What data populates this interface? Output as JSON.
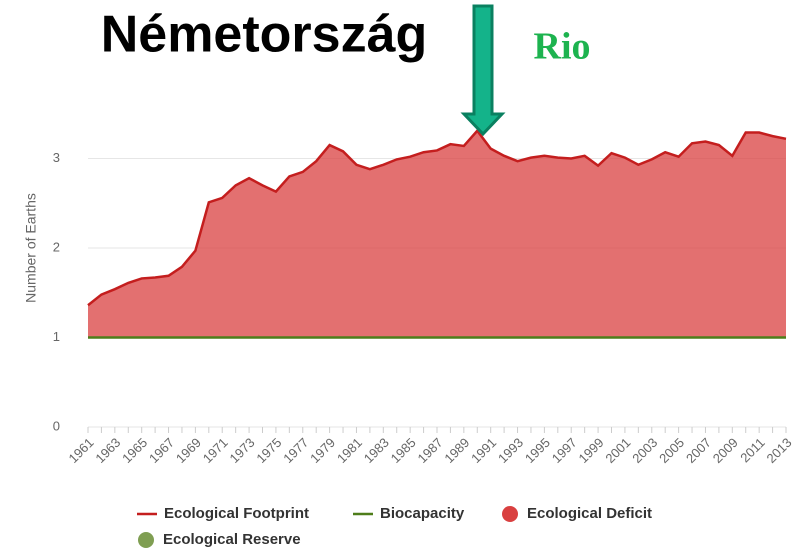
{
  "chart_data": {
    "type": "area",
    "title": "Németország",
    "annotation": "Rio",
    "y_label": "Number of Earths",
    "categories": [
      "1961",
      null,
      "1963",
      null,
      "1965",
      null,
      "1967",
      null,
      "1969",
      null,
      "1971",
      null,
      "1973",
      null,
      "1975",
      null,
      "1977",
      null,
      "1979",
      null,
      "1981",
      null,
      "1983",
      null,
      "1985",
      null,
      "1987",
      null,
      "1989",
      null,
      "1991",
      null,
      "1993",
      null,
      "1995",
      null,
      "1997",
      null,
      "1999",
      null,
      "2001",
      null,
      "2003",
      null,
      "2005",
      null,
      "2007",
      null,
      "2009",
      null,
      "2011",
      null,
      "2013"
    ],
    "series": [
      {
        "name": "Ecological Footprint",
        "color": "#c41e1e",
        "values": [
          1.36,
          1.48,
          1.54,
          1.61,
          1.66,
          1.67,
          1.69,
          1.79,
          1.97,
          2.51,
          2.56,
          2.7,
          2.78,
          2.7,
          2.63,
          2.8,
          2.85,
          2.97,
          3.15,
          3.08,
          2.93,
          2.88,
          2.93,
          2.99,
          3.02,
          3.07,
          3.09,
          3.16,
          3.14,
          3.31,
          3.11,
          3.03,
          2.97,
          3.01,
          3.03,
          3.01,
          3.0,
          3.03,
          2.92,
          3.06,
          3.01,
          2.93,
          2.99,
          3.07,
          3.02,
          3.17,
          3.19,
          3.15,
          3.03,
          3.29,
          3.29,
          3.25,
          3.22
        ]
      },
      {
        "name": "Biocapacity",
        "color": "#4e7d1a",
        "values": [
          1,
          1,
          1,
          1,
          1,
          1,
          1,
          1,
          1,
          1,
          1,
          1,
          1,
          1,
          1,
          1,
          1,
          1,
          1,
          1,
          1,
          1,
          1,
          1,
          1,
          1,
          1,
          1,
          1,
          1,
          1,
          1,
          1,
          1,
          1,
          1,
          1,
          1,
          1,
          1,
          1,
          1,
          1,
          1,
          1,
          1,
          1,
          1,
          1,
          1,
          1,
          1,
          1
        ]
      }
    ],
    "areas": [
      {
        "name": "Ecological Deficit",
        "color": "#d94040"
      },
      {
        "name": "Ecological Reserve",
        "color": "#7f9e52"
      }
    ],
    "ylim": [
      0,
      4
    ],
    "yticks": [
      0,
      1,
      2,
      3
    ],
    "grid": true
  }
}
